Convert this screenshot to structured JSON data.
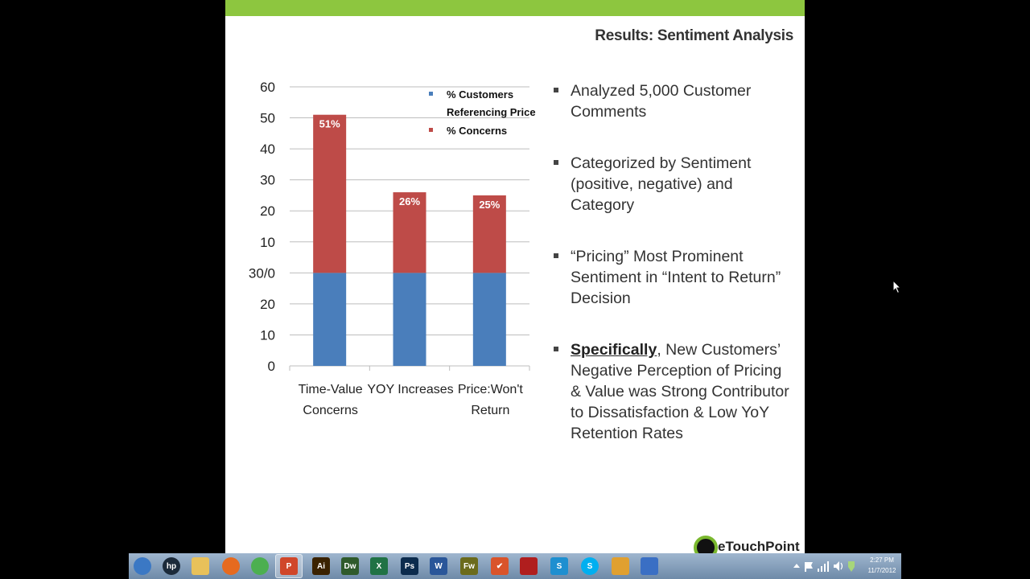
{
  "slide": {
    "title": "Results: Sentiment Analysis",
    "bullets": [
      {
        "emphasis": "",
        "text": "Analyzed 5,000 Customer Comments"
      },
      {
        "emphasis": "",
        "text": "Categorized by Sentiment (positive, negative) and Category"
      },
      {
        "emphasis": "",
        "text": "“Pricing” Most Prominent Sentiment in “Intent to Return” Decision"
      },
      {
        "emphasis": "Specifically",
        "text": ", New Customers’ Negative Perception of Pricing & Value was Strong Contributor to Dissatisfaction & Low YoY Retention Rates"
      }
    ],
    "logo_text": "eTouchPoint"
  },
  "colors": {
    "accent_green": "#8dc63f",
    "series_blue": "#4a7ebb",
    "series_red": "#be4b48"
  },
  "chart_data": {
    "type": "bar",
    "stacked": true,
    "categories": [
      "Time-Value Concerns",
      "YOY Increases",
      "Price:Won't Return"
    ],
    "category_lines": [
      [
        "Time-Value",
        "Concerns"
      ],
      [
        "YOY Increases"
      ],
      [
        "Price:Won't",
        "Return"
      ]
    ],
    "series": [
      {
        "name": "% Customers Referencing Price",
        "legend_lines": [
          "% Customers",
          "Referencing Price"
        ],
        "values": [
          30,
          30,
          30
        ],
        "color": "#4a7ebb"
      },
      {
        "name": "% Concerns",
        "legend_lines": [
          "% Concerns"
        ],
        "values": [
          51,
          26,
          25
        ],
        "labels": [
          "51%",
          "26%",
          "25%"
        ],
        "color": "#be4b48"
      }
    ],
    "ytick_labels": [
      "0",
      "10",
      "20",
      "30/0",
      "10",
      "20",
      "30",
      "40",
      "50",
      "60"
    ],
    "ylim": [
      0,
      90
    ],
    "grid": true,
    "legend_position": "top-right"
  },
  "taskbar": {
    "apps": [
      {
        "name": "start-button",
        "icon": "windows-orb-icon",
        "glyph": "",
        "color": "#3b78c4"
      },
      {
        "name": "hp-button",
        "icon": "hp-icon",
        "glyph": "hp",
        "color": "#1b2a3a"
      },
      {
        "name": "explorer-button",
        "icon": "folder-icon",
        "glyph": "",
        "color": "#e8c15a"
      },
      {
        "name": "firefox-button",
        "icon": "firefox-icon",
        "glyph": "",
        "color": "#e66a1f"
      },
      {
        "name": "chrome-button",
        "icon": "chrome-icon",
        "glyph": "",
        "color": "#4caf50"
      },
      {
        "name": "powerpoint-button",
        "icon": "powerpoint-icon",
        "glyph": "P",
        "color": "#d0472a"
      },
      {
        "name": "illustrator-button",
        "icon": "illustrator-icon",
        "glyph": "Ai",
        "color": "#3a2200"
      },
      {
        "name": "dreamweaver-button",
        "icon": "dreamweaver-icon",
        "glyph": "Dw",
        "color": "#2f5a2b"
      },
      {
        "name": "excel-button",
        "icon": "excel-icon",
        "glyph": "X",
        "color": "#207245"
      },
      {
        "name": "photoshop-button",
        "icon": "photoshop-icon",
        "glyph": "Ps",
        "color": "#0c2b4d"
      },
      {
        "name": "word-button",
        "icon": "word-icon",
        "glyph": "W",
        "color": "#2a5699"
      },
      {
        "name": "fireworks-button",
        "icon": "fireworks-icon",
        "glyph": "Fw",
        "color": "#6b6b1c"
      },
      {
        "name": "checklist-button",
        "icon": "checkmark-icon",
        "glyph": "✔",
        "color": "#d9542b"
      },
      {
        "name": "redbird-button",
        "icon": "bird-icon",
        "glyph": "",
        "color": "#b01e1e"
      },
      {
        "name": "snagit-button",
        "icon": "snagit-icon",
        "glyph": "S",
        "color": "#1e8fd0"
      },
      {
        "name": "skype-button",
        "icon": "skype-icon",
        "glyph": "S",
        "color": "#00aff0"
      },
      {
        "name": "pen-tool-button",
        "icon": "pen-icon",
        "glyph": "",
        "color": "#e0a030"
      },
      {
        "name": "gear-app-button",
        "icon": "gear-icon",
        "glyph": "",
        "color": "#3a6fc4"
      }
    ],
    "clock_time": "2:27 PM",
    "clock_date": "11/7/2012"
  }
}
